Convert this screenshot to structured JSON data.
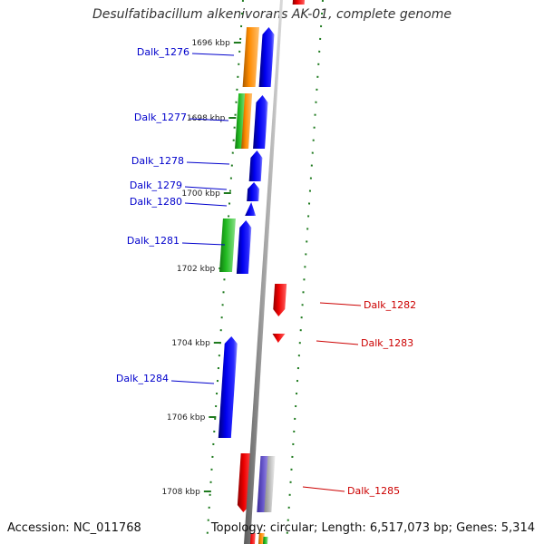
{
  "title": "Desulfatibacillum alkenivorans AK-01, complete genome",
  "footer": {
    "accession": "Accession: NC_011768",
    "summary": "Topology: circular; Length: 6,517,073 bp; Genes: 5,314"
  },
  "kbp_ticks": [
    "1696 kbp",
    "1698 kbp",
    "1700 kbp",
    "1702 kbp",
    "1704 kbp",
    "1706 kbp",
    "1708 kbp"
  ],
  "genes": [
    {
      "label": "Dalk_1276",
      "strand": "left"
    },
    {
      "label": "Dalk_1277",
      "strand": "left"
    },
    {
      "label": "Dalk_1278",
      "strand": "left"
    },
    {
      "label": "Dalk_1279",
      "strand": "left"
    },
    {
      "label": "Dalk_1280",
      "strand": "left"
    },
    {
      "label": "Dalk_1281",
      "strand": "left"
    },
    {
      "label": "Dalk_1282",
      "strand": "right"
    },
    {
      "label": "Dalk_1283",
      "strand": "right"
    },
    {
      "label": "Dalk_1284",
      "strand": "left"
    },
    {
      "label": "Dalk_1285",
      "strand": "right"
    }
  ],
  "colors": {
    "forward_cds": "#0000ee",
    "reverse_cds": "#ee0000",
    "orange_feature": "#ff8c00",
    "green_feature": "#22bb22",
    "purple_feature": "#6a5acd",
    "grey_feature": "#bbbbbb",
    "tick_green": "#1e7a1e",
    "backbone": "#888888",
    "left_label": "#0000cc",
    "right_label": "#cc0000"
  }
}
